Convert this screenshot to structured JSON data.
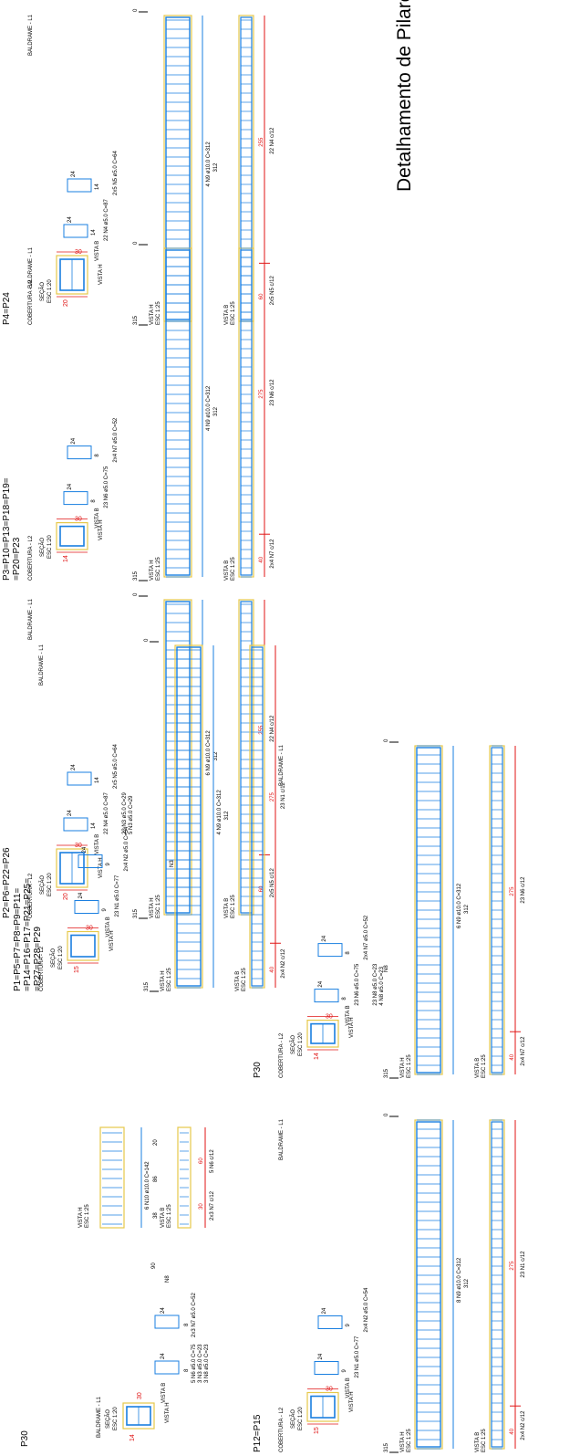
{
  "sheet": {
    "title": "Detalhamento de Pilares",
    "colors": {
      "rebar": "#1a7fe0",
      "outline": "#e6c84a",
      "dim": "#e01616",
      "text": "#000000"
    }
  },
  "labels": {
    "section": "SEÇÃO",
    "section_scale": "ESC 1:20",
    "view_h": "VISTA H",
    "view_b": "VISTA B",
    "view_scale": "ESC 1:25",
    "level_top": "COBERTURA - L2",
    "level_bottom": "BALDRAME - L1",
    "elev_top": "315",
    "elev_bottom": "0"
  },
  "pillars": [
    {
      "id": "p4",
      "name_lines": [
        "P4=P24"
      ],
      "section_b": "30",
      "section_h": "20",
      "stirrups": [
        {
          "text": "22 N4 ø5.0 C=87",
          "dim_a": "24",
          "dim_b": "14"
        },
        {
          "text": "2x5 N5 ø5.0 C=64",
          "dim_a": "24",
          "dim_b": "14"
        }
      ],
      "longitudinal": "4 N9 ø10.0 C=312",
      "length": "312",
      "spacing_main": "22 N4 c/12",
      "spacing_main_len": "255",
      "spacing_top": "2x5 N5 c/12",
      "spacing_top_len": "60"
    },
    {
      "id": "p3",
      "name_lines": [
        "P3=P10=P13=P18=P19=",
        "=P20=P23"
      ],
      "section_b": "30",
      "section_h": "14",
      "stirrups": [
        {
          "text": "23 N6 ø5.0 C=75",
          "dim_a": "24",
          "dim_b": "8"
        },
        {
          "text": "2x4 N7 ø5.0 C=52",
          "dim_a": "24",
          "dim_b": "8"
        }
      ],
      "longitudinal": "4 N9 ø10.0 C=312",
      "length": "312",
      "spacing_main": "23 N6 c/12",
      "spacing_main_len": "275",
      "spacing_top": "2x4 N7 c/12",
      "spacing_top_len": "40"
    },
    {
      "id": "p2",
      "name_lines": [
        "P2=P6=P22=P26"
      ],
      "section_b": "30",
      "section_h": "20",
      "stirrups": [
        {
          "text": "22 N4 ø5.0 C=87",
          "dim_a": "24",
          "dim_b": "14"
        },
        {
          "text": "2x5 N5 ø5.0 C=64",
          "dim_a": "24",
          "dim_b": "14"
        }
      ],
      "extra_lines": [
        "22 N3 ø5.0 C=29",
        "5 N3 ø5.0 C=29"
      ],
      "extra_bar": "N3",
      "longitudinal": "6 N9 ø10.0 C=312",
      "length": "312",
      "spacing_main": "22 N4 c/12",
      "spacing_main_len": "255",
      "spacing_top": "2x5 N5 c/12",
      "spacing_top_len": "60"
    },
    {
      "id": "p1",
      "name_lines": [
        "P1=P5=P7=P8=P9=P11=",
        "=P14=P16=P17=P21=P25=",
        "=P27=P28=P29"
      ],
      "section_b": "30",
      "section_h": "15",
      "stirrups": [
        {
          "text": "23 N1 ø5.0 C=77",
          "dim_a": "24",
          "dim_b": "9"
        },
        {
          "text": "2x4 N2 ø5.0 C=54",
          "dim_a": "24",
          "dim_b": "9"
        }
      ],
      "longitudinal": "4 N9 ø10.0 C=312",
      "length": "312",
      "spacing_main": "23 N1 c/12",
      "spacing_main_len": "275",
      "spacing_top": "2x4 N2 c/12",
      "spacing_top_len": "40"
    }
  ],
  "p30_partial": {
    "name": "P30",
    "section_b": "30",
    "section_h": "14",
    "stirrup_lines": [
      "5 N6 ø5.0 C=75",
      "3 N3 ø5.0 C=23",
      "3 N8 ø5.0 C=23"
    ],
    "stirrup2": "2x3 N7 ø5.0 C=52",
    "dim_a": "24",
    "dim_b": "8",
    "extra_bar": "N8",
    "elev": "90",
    "longitudinal": "6 N10 ø10.0 C=142",
    "dims": [
      "38",
      "86",
      "20"
    ],
    "spacing": [
      "2x3 N7 c/12",
      "5 N6 c/12"
    ],
    "spacing_lens": [
      "30",
      "60"
    ]
  },
  "p30": {
    "name": "P30",
    "section_b": "30",
    "section_h": "14",
    "stirrup_lines": [
      "23 N6 ø5.0 C=75",
      "23 N8 ø5.0 C=23",
      "4 N8 ø5.0 C=23"
    ],
    "stirrup2": "2x4 N7 ø5.0 C=52",
    "dim_a": "24",
    "dim_b": "8",
    "extra_bar": "N8",
    "longitudinal": "6 N9 ø10.0 C=312",
    "length": "312",
    "spacing_main": "23 N6 c/12",
    "spacing_main_len": "275",
    "spacing_top": "2x4 N7 c/12",
    "spacing_top_len": "40"
  },
  "p12": {
    "name": "P12=P15",
    "section_b": "30",
    "section_h": "15",
    "stirrup1": "23 N1 ø5.0 C=77",
    "stirrup2": "2x4 N2 ø5.0 C=54",
    "dim_a": "24",
    "dim_b": "9",
    "longitudinal": "8 N9 ø10.0 C=312",
    "length": "312",
    "spacing_main": "23 N1 c/12",
    "spacing_main_len": "275",
    "spacing_top": "2x4 N2 c/12",
    "spacing_top_len": "40"
  }
}
